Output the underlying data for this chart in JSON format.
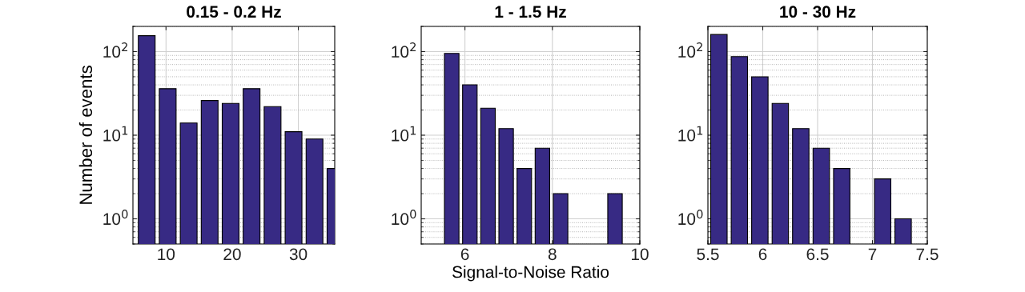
{
  "chart_data": [
    {
      "type": "histogram",
      "title": "0.15 - 0.2 Hz",
      "ylabel": "Number of events",
      "log": "y",
      "grid": true,
      "color": "#372a84",
      "bins": [
        5.5,
        8.67,
        11.84,
        15.01,
        18.18,
        21.35,
        24.52,
        27.69,
        30.86,
        34.03,
        37.2
      ],
      "values": [
        155,
        36,
        14,
        26,
        24,
        36,
        22,
        11,
        9,
        4
      ],
      "xlim": [
        5,
        35.5
      ],
      "xticks": [
        10,
        20,
        30
      ],
      "ylim": [
        0.5,
        200
      ],
      "yticks": [
        {
          "value": 1,
          "label": "10$^{0}$"
        },
        {
          "value": 10,
          "label": "10$^{1}$"
        },
        {
          "value": 100,
          "label": "10$^{2}$"
        }
      ]
    },
    {
      "type": "histogram",
      "title": "1 - 1.5 Hz",
      "xlabel": "Signal-to-Noise Ratio",
      "log": "y",
      "grid": true,
      "color": "#372a84",
      "bins": [
        5.49,
        5.905,
        6.32,
        6.735,
        7.15,
        7.565,
        7.98,
        8.395,
        8.81,
        9.225,
        9.64
      ],
      "values": [
        95,
        40,
        21,
        12,
        4,
        7,
        2,
        null,
        null,
        2
      ],
      "xlim": [
        5,
        10
      ],
      "xticks": [
        6,
        8,
        10
      ],
      "ylim": [
        0.5,
        200
      ],
      "yticks": [
        {
          "value": 1,
          "label": "10$^{0}$"
        },
        {
          "value": 10,
          "label": "10$^{1}$"
        },
        {
          "value": 100,
          "label": "10$^{2}$"
        }
      ]
    },
    {
      "type": "histogram",
      "title": "10 - 30 Hz",
      "log": "y",
      "grid": true,
      "color": "#372a84",
      "bins": [
        5.507,
        5.694,
        5.88,
        6.067,
        6.253,
        6.44,
        6.627,
        6.813,
        7.0,
        7.186,
        7.373
      ],
      "values": [
        160,
        87,
        50,
        24,
        12,
        7,
        4,
        null,
        3,
        1
      ],
      "xlim": [
        5.5,
        7.5
      ],
      "xticks": [
        5.5,
        6,
        6.5,
        7,
        7.5
      ],
      "ylim": [
        0.5,
        200
      ],
      "yticks": [
        {
          "value": 1,
          "label": "10$^{0}$"
        },
        {
          "value": 10,
          "label": "10$^{1}$"
        },
        {
          "value": 100,
          "label": "10$^{2}$"
        }
      ]
    }
  ]
}
